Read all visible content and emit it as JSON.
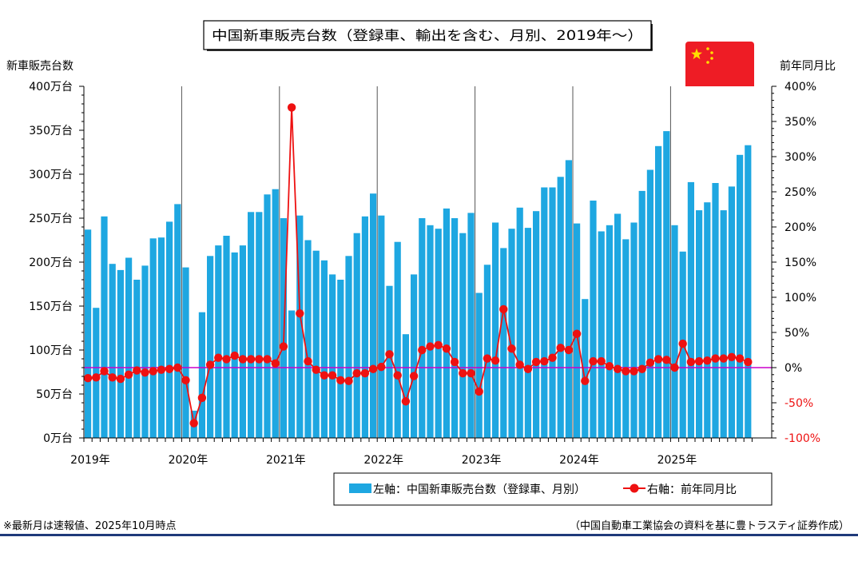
{
  "chart_data": {
    "type": "bar+line",
    "title": "中国新車販売台数（登録車、輸出を含む、月別、2019年～）",
    "left_axis": {
      "label": "新車販売台数",
      "min": 0,
      "max": 400,
      "step": 50,
      "tick_labels": [
        "0万台",
        "50万台",
        "100万台",
        "150万台",
        "200万台",
        "250万台",
        "300万台",
        "350万台",
        "400万台"
      ]
    },
    "right_axis": {
      "label": "前年同月比",
      "min": -100,
      "max": 400,
      "step": 50,
      "tick_labels": [
        "-100%",
        "-50%",
        "0%",
        "50%",
        "100%",
        "150%",
        "200%",
        "250%",
        "300%",
        "350%",
        "400%"
      ]
    },
    "x_axis": {
      "year_labels": [
        "2019年",
        "2020年",
        "2021年",
        "2022年",
        "2023年",
        "2024年",
        "2025年"
      ],
      "months_per_year": 12,
      "total_months": 82
    },
    "series": [
      {
        "name": "左軸：中国新車販売台数（登録車、月別）",
        "type": "bar",
        "axis": "left",
        "unit": "万台",
        "color": "#1ea7e1",
        "values": [
          237,
          148,
          252,
          198,
          191,
          205,
          180,
          196,
          227,
          228,
          246,
          266,
          194,
          31,
          143,
          207,
          219,
          230,
          211,
          219,
          257,
          257,
          277,
          283,
          250,
          145,
          253,
          225,
          213,
          202,
          186,
          180,
          207,
          233,
          252,
          278,
          253,
          173,
          223,
          118,
          186,
          250,
          242,
          238,
          261,
          250,
          233,
          256,
          165,
          197,
          245,
          216,
          238,
          262,
          239,
          258,
          285,
          285,
          297,
          316,
          244,
          158,
          270,
          235,
          242,
          255,
          226,
          245,
          281,
          305,
          332,
          349,
          242,
          212,
          291,
          259,
          268,
          290,
          259,
          286,
          322,
          333
        ]
      },
      {
        "name": "右軸：前年同月比",
        "type": "line",
        "axis": "right",
        "unit": "%",
        "color": "#ee1111",
        "values": [
          -15,
          -14,
          -5,
          -14,
          -16,
          -10,
          -4,
          -7,
          -5,
          -3,
          -2,
          0,
          -18,
          -79,
          -43,
          4,
          14,
          12,
          17,
          12,
          12,
          12,
          12,
          6,
          30,
          370,
          77,
          9,
          -3,
          -11,
          -11,
          -18,
          -19,
          -8,
          -8,
          -2,
          1,
          19,
          -11,
          -48,
          -12,
          25,
          30,
          32,
          27,
          8,
          -8,
          -8,
          -34,
          13,
          10,
          83,
          27,
          4,
          -2,
          8,
          9,
          14,
          28,
          25,
          48,
          -19,
          9,
          9,
          2,
          -2,
          -5,
          -5,
          -2,
          7,
          12,
          11,
          0,
          34,
          8,
          9,
          10,
          13,
          13,
          15,
          13,
          8
        ]
      }
    ],
    "zero_line_color": "#cc00cc",
    "legend": [
      "左軸：中国新車販売台数（登録車、月別）",
      "右軸：前年同月比"
    ]
  },
  "footnote_left": "※最新月は速報値、2025年10月時点",
  "footnote_right": "（中国自動車工業協会の資料を基に豊トラスティ証券作成）",
  "colors": {
    "flag_red": "#ee1c25",
    "flag_star": "#ffde00",
    "footer_rule": "#1f3a7a"
  }
}
